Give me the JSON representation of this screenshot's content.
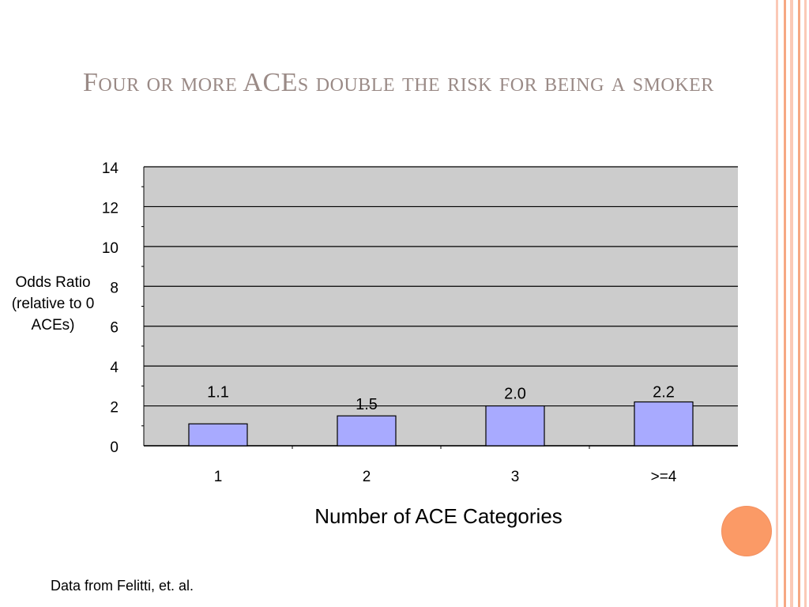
{
  "slide": {
    "title": "Four or more ACEs double the risk for being a smoker",
    "source_note": "Data from Felitti, et. al."
  },
  "theme": {
    "title_color": "#9a8a86",
    "plot_background": "#cccccc",
    "bar_fill": "#a8aaff",
    "accent_circle": "#fb9a66",
    "stripe_colors": [
      "#fbc9b6",
      "#f6a883"
    ]
  },
  "chart_data": {
    "type": "bar",
    "categories": [
      "1",
      "2",
      "3",
      ">=4"
    ],
    "values": [
      1.1,
      1.5,
      2.0,
      2.2
    ],
    "data_labels": [
      "1.1",
      "1.5",
      "2.0",
      "2.2"
    ],
    "xlabel": "Number of ACE Categories",
    "ylabel": [
      "Odds Ratio",
      "(relative to 0",
      "ACEs)"
    ],
    "ylim": [
      0,
      14
    ],
    "yticks": [
      0,
      2,
      4,
      6,
      8,
      10,
      12,
      14
    ],
    "grid": true,
    "legend": "none"
  }
}
